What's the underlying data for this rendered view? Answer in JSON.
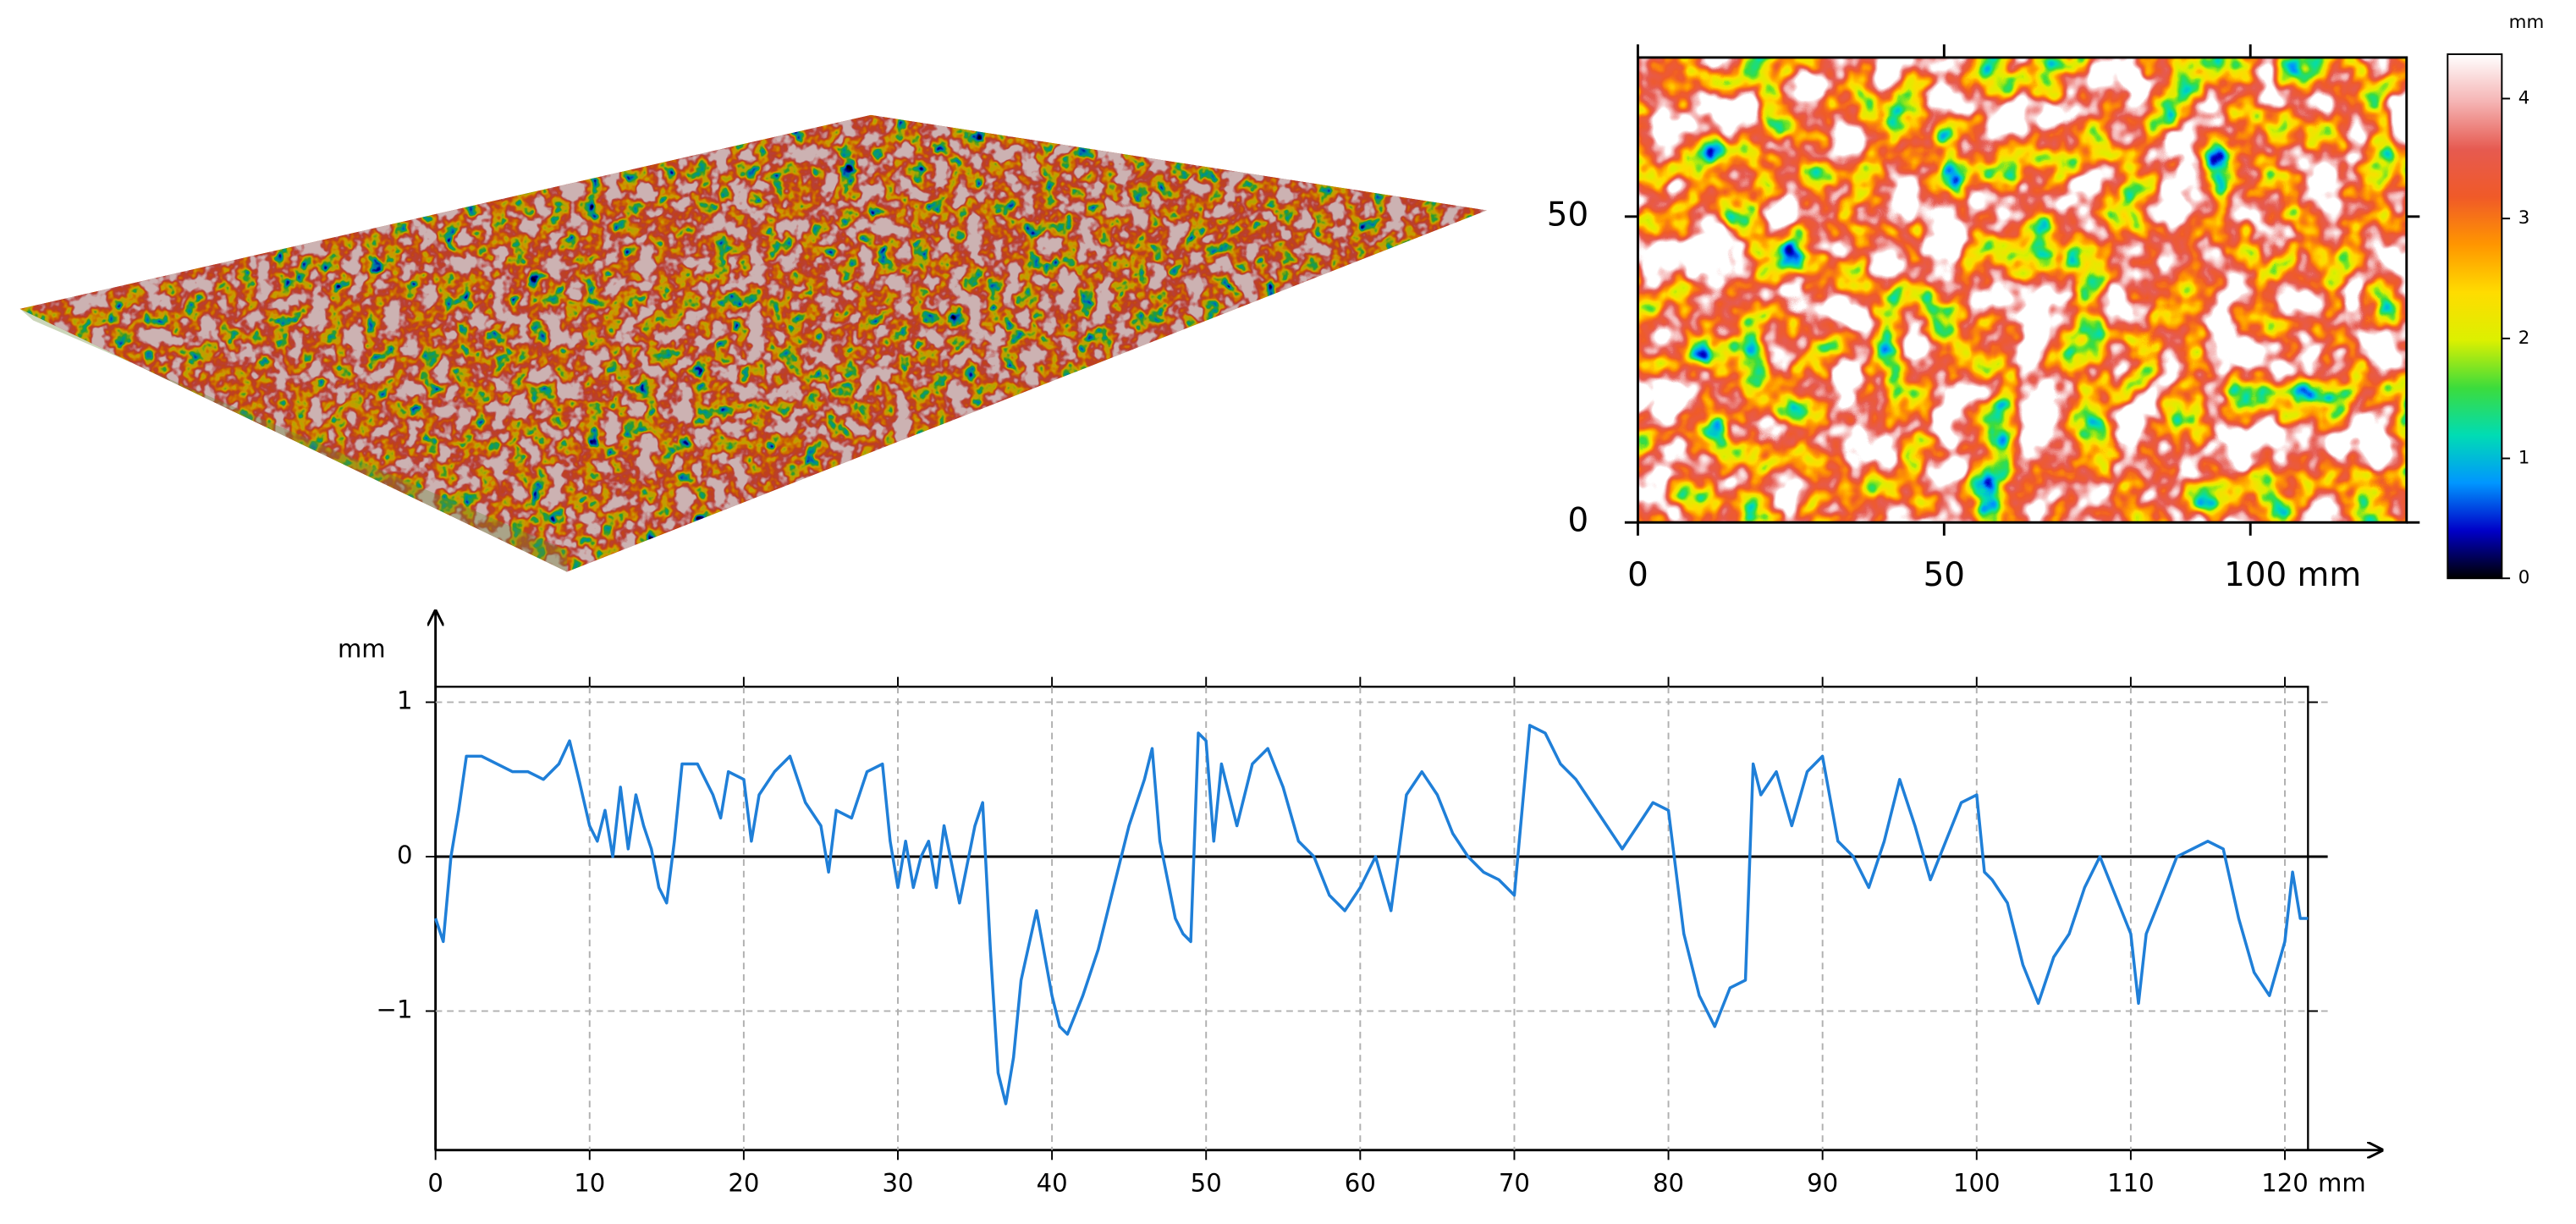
{
  "chart_data": [
    {
      "type": "heatmap",
      "xlim": [
        0,
        125.5
      ],
      "xticks": [
        0,
        50,
        {
          "value": 100,
          "label": "100 mm"
        }
      ],
      "ylim": [
        0,
        76
      ],
      "yticks": [
        0,
        50
      ],
      "colorbar": {
        "label": "mm",
        "lim": [
          0,
          4.37
        ],
        "ticks": [
          0,
          1,
          2,
          3,
          4
        ]
      },
      "colormap": [
        "#000000",
        "#0000c8",
        "#0096ff",
        "#00dcb4",
        "#3cdc3c",
        "#dcf000",
        "#ffdc00",
        "#ff9600",
        "#f05a28",
        "#e65a50",
        "#f5b4b4",
        "#ffffff"
      ]
    },
    {
      "type": "line",
      "ylabel": "mm",
      "xunit": "mm",
      "xlim": [
        0,
        121.5
      ],
      "xticks": [
        0,
        10,
        20,
        30,
        40,
        50,
        60,
        70,
        80,
        90,
        100,
        110,
        120
      ],
      "ylim": [
        -1.9,
        1.1
      ],
      "yticks": [
        1,
        0,
        {
          "value": -1,
          "label": "−1"
        }
      ],
      "grid": true,
      "color": "#1f7fd8",
      "x": [
        0,
        0.5,
        1,
        1.5,
        2,
        3,
        4,
        5,
        6,
        7,
        8,
        8.7,
        9.3,
        10,
        10.5,
        11,
        11.5,
        12,
        12.5,
        13,
        13.5,
        14,
        14.5,
        15,
        15.5,
        16,
        17,
        18,
        18.5,
        19,
        20,
        20.5,
        21,
        22,
        23,
        24,
        25,
        25.5,
        26,
        27,
        28,
        29,
        29.5,
        30,
        30.5,
        31,
        31.5,
        32,
        32.5,
        33,
        34,
        35,
        35.5,
        36,
        36.5,
        37,
        37.5,
        38,
        39,
        40,
        40.5,
        41,
        42,
        43,
        44,
        45,
        46,
        46.5,
        47,
        48,
        48.5,
        49,
        49.5,
        50,
        50.5,
        51,
        52,
        53,
        54,
        55,
        56,
        57,
        58,
        59,
        60,
        61,
        62,
        63,
        64,
        65,
        66,
        67,
        68,
        69,
        70,
        71,
        72,
        73,
        74,
        75,
        76,
        77,
        78,
        79,
        80,
        81,
        82,
        83,
        84,
        85,
        85.5,
        86,
        87,
        88,
        89,
        90,
        91,
        92,
        93,
        94,
        95,
        96,
        97,
        98,
        99,
        100,
        100.5,
        101,
        102,
        103,
        104,
        105,
        106,
        107,
        108,
        109,
        110,
        110.5,
        111,
        112,
        113,
        114,
        115,
        116,
        117,
        118,
        119,
        120,
        120.5,
        121,
        121.5
      ],
      "values": [
        -0.4,
        -0.55,
        0.0,
        0.3,
        0.65,
        0.65,
        0.6,
        0.55,
        0.55,
        0.5,
        0.6,
        0.75,
        0.5,
        0.2,
        0.1,
        0.3,
        0.0,
        0.45,
        0.05,
        0.4,
        0.2,
        0.05,
        -0.2,
        -0.3,
        0.1,
        0.6,
        0.6,
        0.4,
        0.25,
        0.55,
        0.5,
        0.1,
        0.4,
        0.55,
        0.65,
        0.35,
        0.2,
        -0.1,
        0.3,
        0.25,
        0.55,
        0.6,
        0.1,
        -0.2,
        0.1,
        -0.2,
        0.0,
        0.1,
        -0.2,
        0.2,
        -0.3,
        0.2,
        0.35,
        -0.6,
        -1.4,
        -1.6,
        -1.3,
        -0.8,
        -0.35,
        -0.9,
        -1.1,
        -1.15,
        -0.9,
        -0.6,
        -0.2,
        0.2,
        0.5,
        0.7,
        0.1,
        -0.4,
        -0.5,
        -0.55,
        0.8,
        0.75,
        0.1,
        0.6,
        0.2,
        0.6,
        0.7,
        0.45,
        0.1,
        0.0,
        -0.25,
        -0.35,
        -0.2,
        0.0,
        -0.35,
        0.4,
        0.55,
        0.4,
        0.15,
        0.0,
        -0.1,
        -0.15,
        -0.25,
        0.85,
        0.8,
        0.6,
        0.5,
        0.35,
        0.2,
        0.05,
        0.2,
        0.35,
        0.3,
        -0.5,
        -0.9,
        -1.1,
        -0.85,
        -0.8,
        0.6,
        0.4,
        0.55,
        0.2,
        0.55,
        0.65,
        0.1,
        0.0,
        -0.2,
        0.1,
        0.5,
        0.2,
        -0.15,
        0.1,
        0.35,
        0.4,
        -0.1,
        -0.15,
        -0.3,
        -0.7,
        -0.95,
        -0.65,
        -0.5,
        -0.2,
        0.0,
        -0.25,
        -0.5,
        -0.95,
        -0.5,
        -0.25,
        0.0,
        0.05,
        0.1,
        0.05,
        -0.4,
        -0.75,
        -0.9,
        -0.55,
        -0.1,
        -0.4,
        -0.4
      ]
    }
  ]
}
